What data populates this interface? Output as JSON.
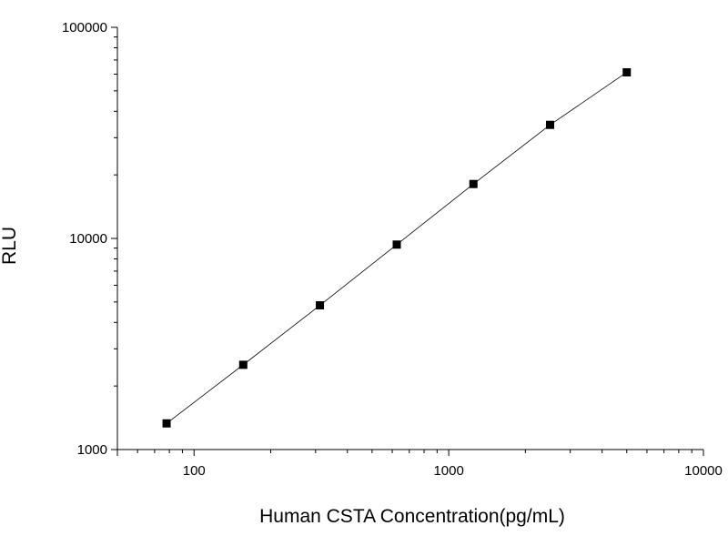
{
  "chart_data": {
    "type": "scatter",
    "title": "",
    "xlabel": "Human CSTA Concentration(pg/mL)",
    "ylabel": "RLU",
    "x_scale": "log",
    "y_scale": "log",
    "xlim": [
      50,
      10000
    ],
    "ylim": [
      1000,
      100000
    ],
    "x_ticks": [
      {
        "value": 100,
        "label": "100"
      },
      {
        "value": 1000,
        "label": "1000"
      },
      {
        "value": 10000,
        "label": "10000"
      }
    ],
    "y_ticks": [
      {
        "value": 1000,
        "label": "1000"
      },
      {
        "value": 10000,
        "label": "10000"
      },
      {
        "value": 100000,
        "label": "100000"
      }
    ],
    "grid": false,
    "legend": false,
    "series": [
      {
        "marker": "square",
        "line": "straight",
        "color": "#000000",
        "points": [
          {
            "x": 78,
            "y": 1330
          },
          {
            "x": 156,
            "y": 2520
          },
          {
            "x": 312,
            "y": 4820
          },
          {
            "x": 625,
            "y": 9350
          },
          {
            "x": 1250,
            "y": 18100
          },
          {
            "x": 2500,
            "y": 34500
          },
          {
            "x": 5000,
            "y": 61200
          }
        ]
      }
    ]
  }
}
